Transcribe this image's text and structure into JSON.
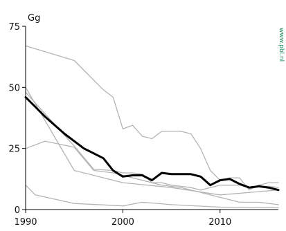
{
  "chart_data": {
    "type": "line",
    "unit_label": "Gg",
    "watermark": "www.pbl.nl",
    "xlim": [
      1990,
      2016
    ],
    "ylim": [
      0,
      75
    ],
    "x_ticks": [
      1990,
      2000,
      2010
    ],
    "x_tick_labels": [
      "1990",
      "2000",
      "2010"
    ],
    "y_ticks": [
      0,
      25,
      50,
      75
    ],
    "y_tick_labels": [
      "0",
      "25",
      "50",
      "75"
    ],
    "grid": false,
    "legend": "none",
    "colors": {
      "highlight": "#000000",
      "other": "#b4b4b4",
      "axis": "#000000",
      "watermark": "#1e8a5a"
    },
    "series": [
      {
        "highlight": false,
        "x": [
          1990,
          1995,
          1998,
          1999,
          2000,
          2001,
          2002,
          2003,
          2004,
          2005,
          2006,
          2007,
          2008,
          2009,
          2010,
          2011,
          2012,
          2013,
          2014,
          2015,
          2016
        ],
        "values": [
          67,
          61,
          49,
          46,
          33,
          34.5,
          30,
          29,
          32,
          32,
          32,
          31,
          25,
          16,
          12,
          13,
          13,
          8,
          10,
          11,
          11
        ]
      },
      {
        "highlight": false,
        "x": [
          1990,
          1995,
          1997,
          1999,
          2000,
          2001,
          2002,
          2003,
          2004,
          2005,
          2006,
          2007,
          2008,
          2009,
          2010,
          2011,
          2012,
          2013,
          2014,
          2015,
          2016
        ],
        "values": [
          48,
          26,
          16.5,
          16,
          15,
          15,
          14.5,
          11,
          11,
          10,
          9.5,
          9,
          8,
          9,
          10,
          10,
          10,
          9,
          9.5,
          9.5,
          9
        ]
      },
      {
        "highlight": false,
        "x": [
          1990,
          1992,
          1995,
          1997,
          1999,
          2001,
          2002,
          2004,
          2006,
          2008,
          2010,
          2012,
          2014,
          2016
        ],
        "values": [
          25,
          28,
          25.5,
          16,
          15,
          13,
          12,
          10,
          9,
          7,
          5,
          3,
          3,
          2
        ]
      },
      {
        "highlight": false,
        "x": [
          1990,
          1995,
          2000,
          2005,
          2010,
          2016
        ],
        "values": [
          50,
          16,
          11,
          9,
          6,
          8
        ]
      },
      {
        "highlight": false,
        "x": [
          1990,
          1991,
          1995,
          2000,
          2002,
          2005,
          2010,
          2016
        ],
        "values": [
          10,
          6,
          2.5,
          1.5,
          3,
          2,
          1,
          0.7
        ]
      },
      {
        "highlight": true,
        "x": [
          1990,
          1992,
          1994,
          1996,
          1998,
          1999,
          2000,
          2001,
          2002,
          2003,
          2004,
          2005,
          2006,
          2007,
          2008,
          2009,
          2010,
          2011,
          2012,
          2013,
          2014,
          2015,
          2016
        ],
        "values": [
          46,
          38,
          31,
          25,
          21,
          16,
          13.5,
          14,
          14,
          12,
          15,
          14.5,
          14.5,
          14.5,
          13.5,
          10,
          12,
          12.5,
          10.5,
          9,
          9.5,
          9,
          8
        ]
      }
    ]
  }
}
